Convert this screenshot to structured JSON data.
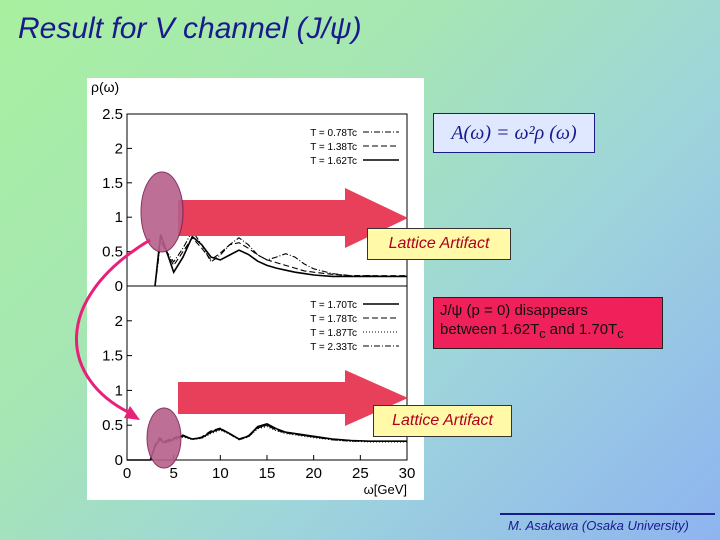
{
  "slide": {
    "title": "Result for V channel (J/ψ)",
    "formula": "A(ω) = ω²ρ (ω)",
    "artifact_label_1": "Lattice Artifact",
    "artifact_label_2": "Lattice Artifact",
    "note_line1": "J/ψ (p = 0) disappears",
    "note_line2": "between 1.62T",
    "note_sub1": "c",
    "note_mid": " and 1.70T",
    "note_sub2": "c",
    "footer": "M. Asakawa (Osaka University)",
    "colors": {
      "title": "#1a1a8c",
      "arrow": "#e8405a",
      "ellipse": "#b8608a",
      "note_bg": "#f0205a",
      "artifact_bg": "#fff9a8"
    }
  },
  "chart_data": [
    {
      "type": "line",
      "ylabel": "ρ(ω)",
      "xlim": [
        0,
        30
      ],
      "ylim": [
        0,
        2.5
      ],
      "yticks": [
        "0",
        "0.5",
        "1",
        "1.5",
        "2",
        "2.5"
      ],
      "legend_position": "top-right",
      "series": [
        {
          "name": "T = 0.78Tc",
          "style": "dash-dot",
          "x": [
            3,
            3.3,
            3.6,
            4,
            5,
            6,
            7,
            8,
            9,
            10,
            11,
            12,
            13,
            14,
            15,
            16,
            17,
            18,
            19,
            20,
            22,
            24,
            26,
            28,
            30
          ],
          "values": [
            0,
            0.3,
            0.65,
            0.55,
            0.35,
            0.55,
            0.8,
            0.6,
            0.35,
            0.45,
            0.6,
            0.7,
            0.6,
            0.45,
            0.38,
            0.42,
            0.47,
            0.42,
            0.32,
            0.25,
            0.18,
            0.15,
            0.15,
            0.14,
            0.14
          ]
        },
        {
          "name": "T = 1.38Tc",
          "style": "dashed",
          "x": [
            3,
            3.3,
            3.6,
            4,
            5,
            6,
            7,
            8,
            9,
            10,
            11,
            12,
            13,
            14,
            15,
            16,
            17,
            18,
            19,
            20,
            22,
            24,
            26,
            28,
            30
          ],
          "values": [
            0,
            0.35,
            0.7,
            0.55,
            0.3,
            0.5,
            0.7,
            0.55,
            0.38,
            0.48,
            0.6,
            0.63,
            0.55,
            0.45,
            0.38,
            0.34,
            0.3,
            0.26,
            0.22,
            0.2,
            0.17,
            0.15,
            0.15,
            0.15,
            0.15
          ]
        },
        {
          "name": "T = 1.62Tc",
          "style": "solid",
          "x": [
            3,
            3.3,
            3.6,
            4,
            5,
            6,
            7,
            8,
            9,
            10,
            11,
            12,
            13,
            14,
            15,
            16,
            17,
            18,
            19,
            20,
            22,
            24,
            26,
            28,
            30
          ],
          "values": [
            0,
            0.38,
            0.75,
            0.6,
            0.2,
            0.42,
            0.72,
            0.6,
            0.42,
            0.38,
            0.45,
            0.52,
            0.46,
            0.36,
            0.3,
            0.26,
            0.23,
            0.2,
            0.18,
            0.16,
            0.14,
            0.14,
            0.14,
            0.14,
            0.14
          ]
        }
      ]
    },
    {
      "type": "line",
      "xlabel": "ω[GeV]",
      "xlim": [
        0,
        30
      ],
      "ylim": [
        0,
        2.5
      ],
      "xticks": [
        "0",
        "5",
        "10",
        "15",
        "20",
        "25",
        "30"
      ],
      "yticks": [
        "0",
        "0.5",
        "1",
        "1.5",
        "2"
      ],
      "legend_position": "top-right",
      "series": [
        {
          "name": "T = 1.70Tc",
          "style": "solid",
          "x": [
            0,
            2.5,
            3,
            3.5,
            4,
            5,
            6,
            7,
            8,
            9,
            10,
            11,
            12,
            13,
            14,
            15,
            16,
            17,
            18,
            19,
            20,
            22,
            24,
            26,
            28,
            30
          ],
          "values": [
            0,
            0,
            0.2,
            0.3,
            0.25,
            0.3,
            0.35,
            0.3,
            0.32,
            0.4,
            0.45,
            0.38,
            0.3,
            0.34,
            0.48,
            0.52,
            0.45,
            0.4,
            0.38,
            0.36,
            0.34,
            0.3,
            0.28,
            0.27,
            0.27,
            0.27
          ]
        },
        {
          "name": "T = 1.78Tc",
          "style": "dashed",
          "x": [
            0,
            2.5,
            3,
            3.5,
            4,
            5,
            6,
            7,
            8,
            9,
            10,
            11,
            12,
            13,
            14,
            15,
            16,
            17,
            18,
            19,
            20,
            22,
            24,
            26,
            28,
            30
          ],
          "values": [
            0,
            0,
            0.22,
            0.32,
            0.27,
            0.32,
            0.36,
            0.3,
            0.33,
            0.42,
            0.46,
            0.38,
            0.3,
            0.35,
            0.47,
            0.5,
            0.43,
            0.39,
            0.37,
            0.35,
            0.33,
            0.3,
            0.28,
            0.27,
            0.27,
            0.27
          ]
        },
        {
          "name": "T = 1.87Tc",
          "style": "dotted",
          "x": [
            0,
            2.5,
            3,
            3.5,
            4,
            5,
            6,
            7,
            8,
            9,
            10,
            11,
            12,
            13,
            14,
            15,
            16,
            17,
            18,
            19,
            20,
            22,
            24,
            26,
            28,
            30
          ],
          "values": [
            0,
            0,
            0.18,
            0.28,
            0.24,
            0.28,
            0.33,
            0.29,
            0.31,
            0.38,
            0.43,
            0.37,
            0.3,
            0.33,
            0.45,
            0.48,
            0.42,
            0.38,
            0.36,
            0.34,
            0.32,
            0.29,
            0.27,
            0.26,
            0.26,
            0.26
          ]
        },
        {
          "name": "T = 2.33Tc",
          "style": "dash-dot",
          "x": [
            0,
            2.5,
            3,
            3.5,
            4,
            5,
            6,
            7,
            8,
            9,
            10,
            11,
            12,
            13,
            14,
            15,
            16,
            17,
            18,
            19,
            20,
            22,
            24,
            26,
            28,
            30
          ],
          "values": [
            0,
            0,
            0.2,
            0.3,
            0.26,
            0.3,
            0.34,
            0.3,
            0.32,
            0.41,
            0.44,
            0.37,
            0.29,
            0.33,
            0.46,
            0.5,
            0.44,
            0.4,
            0.37,
            0.35,
            0.33,
            0.29,
            0.27,
            0.27,
            0.27,
            0.27
          ]
        }
      ]
    }
  ]
}
